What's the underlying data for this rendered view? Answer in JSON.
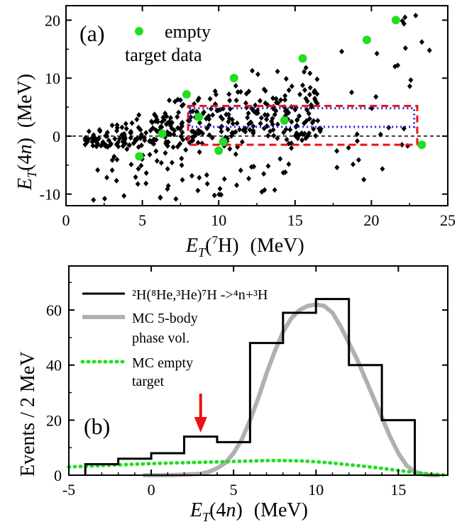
{
  "chart_data": [
    {
      "type": "scatter",
      "panel_label": "(a)",
      "xlabel": {
        "italic": "E",
        "sub": "T",
        "paren_open": "(",
        "sup": "7",
        "main": "H",
        "paren_close": ")",
        "unit": "(MeV)"
      },
      "ylabel": {
        "italic": "E",
        "sub": "T",
        "paren_open": "(",
        "main": "4",
        "italic2": "n",
        "paren_close": ")",
        "unit": "(MeV)"
      },
      "xlim": [
        0,
        25
      ],
      "ylim": [
        -12,
        22.5
      ],
      "xticks": [
        "0",
        "5",
        "10",
        "15",
        "20",
        "25"
      ],
      "yticks": [
        "-10",
        "0",
        "10",
        "20"
      ],
      "legend": {
        "line1": "empty",
        "line2": "target data",
        "color": "#22dd22"
      },
      "zero_line": {
        "y": 0,
        "style": "dashed"
      },
      "red_box": {
        "x": [
          8,
          23
        ],
        "y": [
          -1.5,
          5.2
        ],
        "color": "#ee1111",
        "style": "dashed"
      },
      "blue_box": {
        "x": [
          8.1,
          22.8
        ],
        "y": [
          1.6,
          4.8
        ],
        "color": "#2222dd",
        "style": "dotted"
      },
      "series": [
        {
          "marker": "diamond",
          "color": "#000000"
        },
        {
          "name": "empty target data",
          "marker": "circle",
          "color": "#22dd22",
          "points": [
            [
              4.8,
              -3.5
            ],
            [
              6.3,
              0.4
            ],
            [
              7.9,
              7.2
            ],
            [
              8.7,
              3.3
            ],
            [
              10.0,
              -2.5
            ],
            [
              10.3,
              -1.0
            ],
            [
              11.0,
              10.0
            ],
            [
              14.3,
              2.7
            ],
            [
              15.5,
              13.4
            ],
            [
              19.7,
              16.6
            ],
            [
              21.6,
              20.0
            ],
            [
              23.3,
              -1.5
            ]
          ]
        }
      ]
    },
    {
      "type": "line",
      "panel_label": "(b)",
      "xlabel": {
        "italic": "E",
        "sub": "T",
        "paren_open": "(",
        "main": "4",
        "italic2": "n",
        "paren_close": ")",
        "unit": "(MeV)"
      },
      "ylabel": "Events / 2 MeV",
      "xlim": [
        -5,
        18
      ],
      "ylim": [
        0,
        76
      ],
      "xticks": [
        "-5",
        "0",
        "5",
        "10",
        "15"
      ],
      "yticks": [
        "0",
        "20",
        "40",
        "60"
      ],
      "arrow": {
        "x": 3,
        "color": "#ee1111"
      },
      "series": [
        {
          "name": "²H(⁸He,³He)⁷H ->⁴n+³H",
          "style": "step",
          "color": "#000000",
          "bin_edges": [
            -4,
            -2,
            0,
            2,
            4,
            6,
            8,
            10,
            12,
            14,
            16
          ],
          "values": [
            4,
            6,
            8,
            14,
            12,
            48,
            59,
            64,
            40,
            20
          ]
        },
        {
          "name_line1": "MC 5-body",
          "name_line2": "phase vol.",
          "style": "solid",
          "color": "#b0b0b0",
          "x": [
            -0.5,
            1,
            2,
            3,
            3.5,
            4,
            4.5,
            5,
            5.5,
            6,
            6.5,
            7,
            7.5,
            8,
            8.5,
            9,
            9.5,
            10,
            10.5,
            11,
            11.5,
            12,
            12.5,
            13,
            13.5,
            14,
            14.5,
            15,
            15.5,
            16,
            16.5,
            17,
            17.5
          ],
          "y": [
            0,
            0,
            0.2,
            0.5,
            1.2,
            2.5,
            4.5,
            8,
            13,
            20,
            28,
            37,
            45,
            52,
            57,
            60,
            61.5,
            62,
            61.5,
            59,
            54,
            48,
            42,
            35,
            28,
            21,
            14,
            8,
            3.5,
            1.2,
            0.3,
            0,
            0
          ]
        },
        {
          "name_line1": "MC empty",
          "name_line2": "target",
          "style": "dotted",
          "color": "#22dd22",
          "x": [
            -5,
            -3,
            -1,
            1,
            3,
            5,
            7,
            8,
            9,
            10,
            11,
            12,
            13,
            14,
            15,
            16,
            17,
            18
          ],
          "y": [
            3.0,
            3.5,
            4.0,
            4.4,
            4.7,
            5.0,
            5.3,
            5.3,
            5.2,
            4.9,
            4.4,
            3.8,
            3.2,
            2.5,
            1.7,
            1.0,
            0.4,
            0
          ]
        }
      ]
    }
  ]
}
